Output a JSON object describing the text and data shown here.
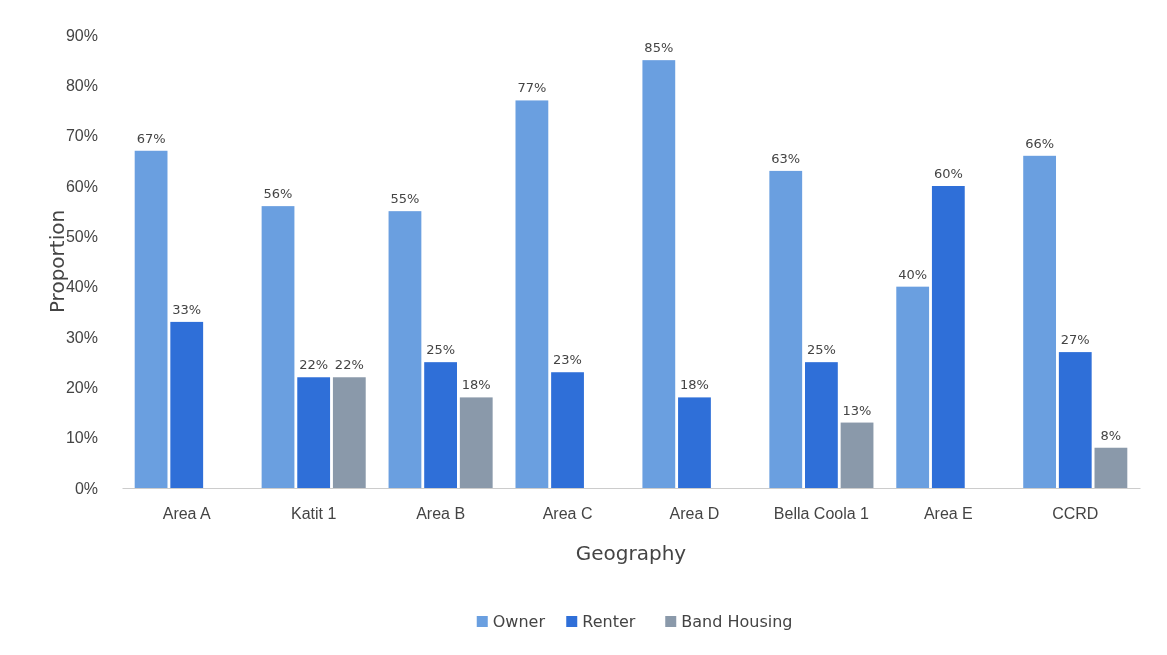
{
  "chart_data": {
    "type": "bar",
    "xlabel": "Geography",
    "ylabel": "Proportion",
    "categories": [
      "Area A",
      "Katit 1",
      "Area B",
      "Area C",
      "Area D",
      "Bella Coola 1",
      "Area E",
      "CCRD"
    ],
    "series": [
      {
        "name": "Owner",
        "color": "#6a9fe0",
        "values": [
          67,
          56,
          55,
          77,
          85,
          63,
          40,
          66
        ],
        "value_labels": [
          "67%",
          "56%",
          "55%",
          "77%",
          "85%",
          "63%",
          "40%",
          "66%"
        ]
      },
      {
        "name": "Renter",
        "color": "#2f6fd8",
        "values": [
          33,
          22,
          25,
          23,
          18,
          25,
          60,
          27
        ],
        "value_labels": [
          "33%",
          "22%",
          "25%",
          "23%",
          "18%",
          "25%",
          "60%",
          "27%"
        ]
      },
      {
        "name": "Band Housing",
        "color": "#8a99aa",
        "values": [
          null,
          22,
          18,
          null,
          null,
          13,
          null,
          8
        ],
        "value_labels": [
          null,
          "22%",
          "18%",
          null,
          null,
          "13%",
          null,
          "8%"
        ]
      }
    ],
    "ylim": [
      0,
      90
    ],
    "yticks": [
      {
        "value": 0,
        "label": "0%"
      },
      {
        "value": 10,
        "label": "10%"
      },
      {
        "value": 20,
        "label": "20%"
      },
      {
        "value": 30,
        "label": "30%"
      },
      {
        "value": 40,
        "label": "40%"
      },
      {
        "value": 50,
        "label": "50%"
      },
      {
        "value": 60,
        "label": "60%"
      },
      {
        "value": 70,
        "label": "70%"
      },
      {
        "value": 80,
        "label": "80%"
      },
      {
        "value": 90,
        "label": "90%"
      }
    ],
    "grid": false,
    "legend": "bottom"
  }
}
